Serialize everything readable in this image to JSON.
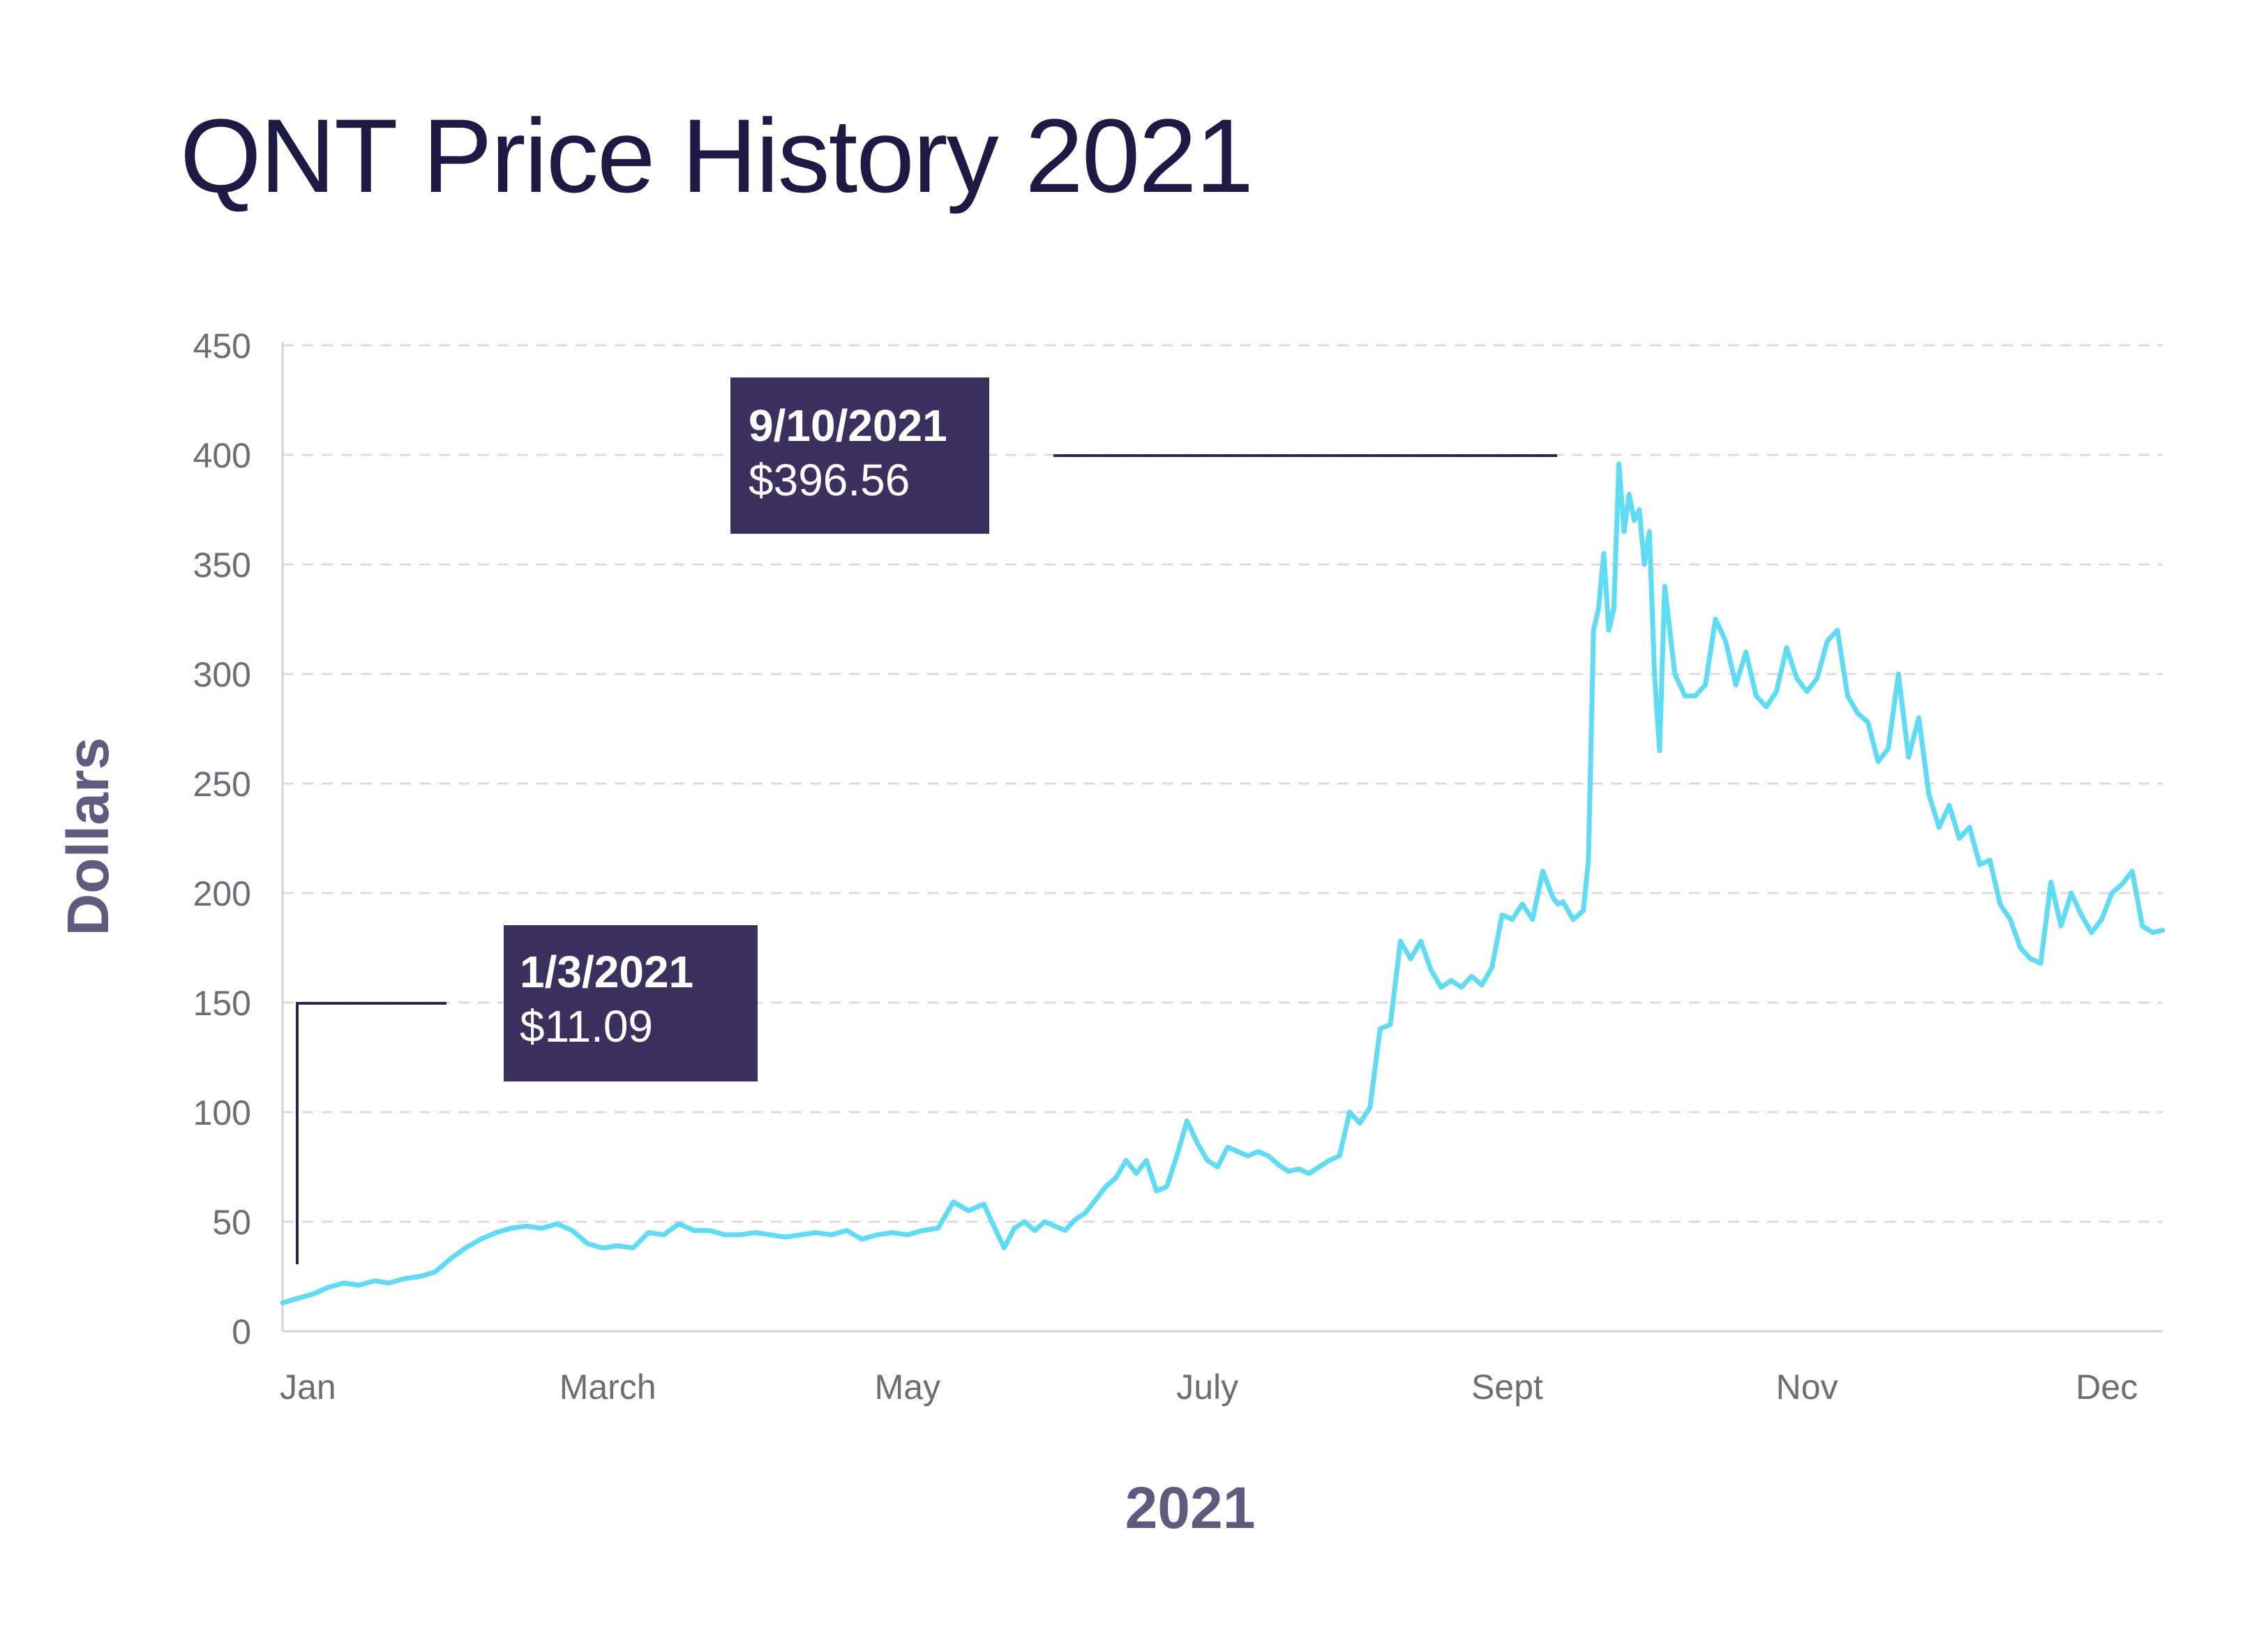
{
  "chart_data": {
    "type": "line",
    "title": "QNT Price History 2021",
    "xlabel": "2021",
    "ylabel": "Dollars",
    "ylim": [
      0,
      450
    ],
    "yticks": [
      "0",
      "50",
      "100",
      "150",
      "200",
      "250",
      "300",
      "350",
      "400",
      "450"
    ],
    "xticks": [
      {
        "label": "Jan",
        "day": 5
      },
      {
        "label": "March",
        "day": 64
      },
      {
        "label": "May",
        "day": 123
      },
      {
        "label": "July",
        "day": 182
      },
      {
        "label": "Sept",
        "day": 241
      },
      {
        "label": "Nov",
        "day": 300
      },
      {
        "label": "Dec",
        "day": 359
      }
    ],
    "grid": true,
    "line_color": "#5ddcf5",
    "series": [
      {
        "x": [
          0,
          3,
          6,
          9,
          12,
          15,
          18,
          21,
          24,
          27,
          30,
          33,
          36,
          39,
          42,
          45,
          48,
          51,
          54,
          57,
          60,
          63,
          66,
          69,
          72,
          75,
          78,
          81,
          84,
          87,
          90,
          93,
          96,
          99,
          102,
          105,
          108,
          111,
          114,
          117,
          120,
          123,
          126,
          129,
          132,
          135,
          138,
          140,
          142,
          144,
          146,
          148,
          150,
          152,
          154,
          156,
          158,
          160,
          162,
          164,
          166,
          168,
          170,
          172,
          174,
          176,
          178,
          180,
          182,
          184,
          186,
          188,
          190,
          192,
          194,
          196,
          198,
          200,
          202,
          204,
          206,
          208,
          210,
          212,
          214,
          216,
          218,
          220,
          222,
          224,
          226,
          228,
          230,
          232,
          234,
          236,
          238,
          240,
          242,
          244,
          246,
          248,
          250,
          251,
          252,
          253,
          254,
          255,
          256,
          257,
          258,
          259,
          260,
          261,
          262,
          263,
          264,
          265,
          266,
          267,
          268,
          269,
          270,
          271,
          272,
          273,
          274,
          276,
          278,
          280,
          282,
          284,
          286,
          288,
          290,
          292,
          294,
          296,
          298,
          300,
          302,
          304,
          306,
          308,
          310,
          312,
          314,
          316,
          318,
          320,
          322,
          324,
          326,
          328,
          330,
          332,
          334,
          336,
          338,
          340,
          342,
          344,
          346,
          348,
          350,
          352,
          354,
          356,
          358,
          360,
          362,
          364,
          366,
          368,
          370
        ],
        "values": [
          13,
          15,
          17,
          20,
          22,
          21,
          23,
          22,
          24,
          25,
          27,
          33,
          38,
          42,
          45,
          47,
          48,
          47,
          49,
          46,
          40,
          38,
          39,
          38,
          45,
          44,
          49,
          46,
          46,
          44,
          44,
          45,
          44,
          43,
          44,
          45,
          44,
          46,
          42,
          44,
          45,
          44,
          46,
          47,
          59,
          55,
          58,
          48,
          38,
          47,
          50,
          46,
          50,
          48,
          46,
          51,
          54,
          60,
          66,
          70,
          78,
          72,
          78,
          64,
          66,
          80,
          96,
          86,
          78,
          75,
          84,
          82,
          80,
          82,
          80,
          76,
          73,
          74,
          72,
          75,
          78,
          80,
          100,
          95,
          102,
          138,
          140,
          178,
          170,
          178,
          165,
          157,
          160,
          157,
          162,
          158,
          166,
          190,
          188,
          195,
          188,
          210,
          198,
          195,
          196,
          192,
          188,
          190,
          192,
          215,
          320,
          330,
          355,
          320,
          330,
          396,
          365,
          382,
          370,
          375,
          350,
          365,
          300,
          265,
          340,
          320,
          300,
          290,
          290,
          295,
          325,
          315,
          295,
          310,
          290,
          285,
          292,
          312,
          298,
          292,
          298,
          315,
          320,
          290,
          282,
          278,
          260,
          266,
          300,
          262,
          280,
          245,
          230,
          240,
          225,
          230,
          213,
          215,
          195,
          188,
          175,
          170,
          168,
          205,
          185,
          200,
          190,
          182,
          188,
          200,
          204,
          210,
          185,
          182,
          183
        ]
      }
    ],
    "annotations": [
      {
        "date": "1/3/2021",
        "value": "$11.09"
      },
      {
        "date": "9/10/2021",
        "value": "$396.56"
      }
    ]
  }
}
